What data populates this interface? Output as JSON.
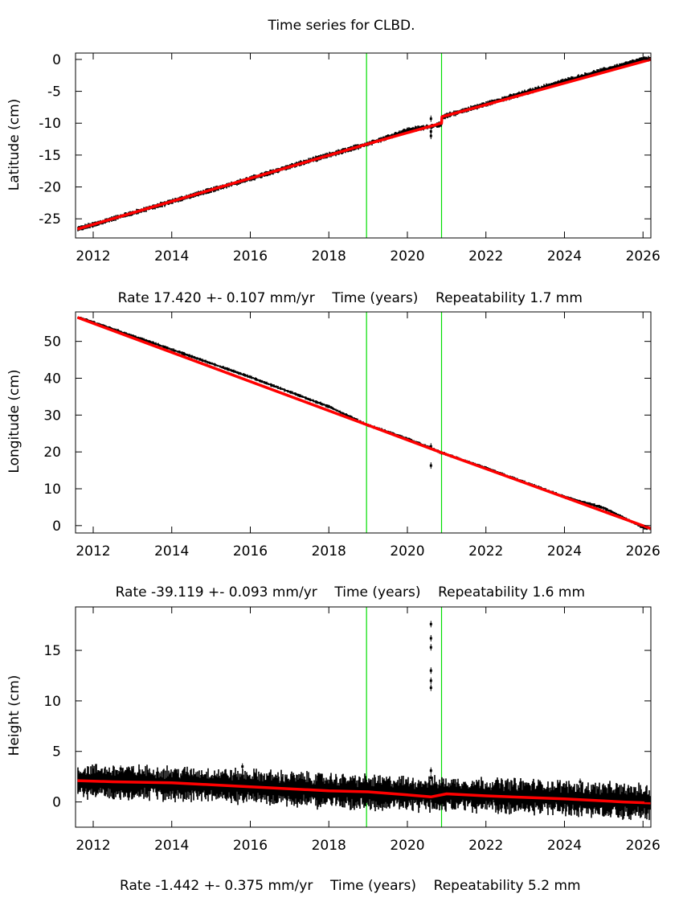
{
  "title": "Time series for CLBD.",
  "colors": {
    "data": "#000000",
    "model": "#ff0000",
    "events": "#00dd00",
    "frame": "#000000"
  },
  "chart_data": [
    {
      "type": "scatter",
      "title": "Time series for CLBD.",
      "ylabel": "Latitude (cm)",
      "xlabel": "Time (years)",
      "rate_text": "Rate 17.420 +- 0.107 mm/yr",
      "repeatability_text": "Repeatability 1.7 mm",
      "xlim": [
        2011.55,
        2026.2
      ],
      "ylim": [
        -28,
        1
      ],
      "xticks": [
        2012,
        2014,
        2016,
        2018,
        2020,
        2022,
        2024,
        2026
      ],
      "yticks": [
        0,
        -5,
        -10,
        -15,
        -20,
        -25
      ],
      "event_lines": [
        2018.96,
        2020.87
      ],
      "series": [
        {
          "name": "observations",
          "color": "#000000",
          "x": [
            2011.6,
            2012,
            2013,
            2014,
            2015,
            2016,
            2017,
            2018,
            2018.96,
            2019.5,
            2020,
            2020.6,
            2020.87,
            2020.9,
            2022,
            2023,
            2024,
            2025,
            2026,
            2026.2
          ],
          "y": [
            -26.6,
            -25.9,
            -24.1,
            -22.3,
            -20.5,
            -18.7,
            -16.8,
            -15.0,
            -13.3,
            -12.2,
            -11.1,
            -10.5,
            -10.2,
            -9.0,
            -7.0,
            -5.2,
            -3.4,
            -1.7,
            0.0,
            0.1
          ]
        },
        {
          "name": "model",
          "color": "#ff0000",
          "x": [
            2011.6,
            2018.96,
            2020.87,
            2020.88,
            2026.2
          ],
          "y": [
            -26.6,
            -13.3,
            -10.0,
            -9.0,
            0.0
          ]
        },
        {
          "name": "outliers",
          "color": "#000000",
          "x": [
            2020.6,
            2020.6,
            2020.6
          ],
          "y": [
            -9.3,
            -11.3,
            -12.0
          ]
        }
      ]
    },
    {
      "type": "scatter",
      "ylabel": "Longitude (cm)",
      "xlabel": "Time (years)",
      "rate_text": "Rate -39.119 +- 0.093 mm/yr",
      "repeatability_text": "Repeatability 1.6 mm",
      "xlim": [
        2011.55,
        2026.2
      ],
      "ylim": [
        -2,
        58
      ],
      "xticks": [
        2012,
        2014,
        2016,
        2018,
        2020,
        2022,
        2024,
        2026
      ],
      "yticks": [
        0,
        10,
        20,
        30,
        40,
        50
      ],
      "event_lines": [
        2018.96,
        2020.87
      ],
      "series": [
        {
          "name": "observations",
          "color": "#000000",
          "x": [
            2011.6,
            2012,
            2014,
            2016,
            2018,
            2018.96,
            2020,
            2020.87,
            2022,
            2024,
            2025,
            2026,
            2026.2
          ],
          "y": [
            56.5,
            55.2,
            47.8,
            40.3,
            32.3,
            27.4,
            23.6,
            19.8,
            15.6,
            7.8,
            4.8,
            -0.5,
            -0.8
          ]
        },
        {
          "name": "model",
          "color": "#ff0000",
          "x": [
            2011.6,
            2018.96,
            2020.87,
            2026.2
          ],
          "y": [
            56.5,
            27.4,
            19.8,
            -0.8
          ]
        },
        {
          "name": "outliers",
          "color": "#000000",
          "x": [
            2020.6,
            2020.6
          ],
          "y": [
            21.5,
            16.3
          ]
        }
      ]
    },
    {
      "type": "scatter",
      "ylabel": "Height (cm)",
      "xlabel": "Time (years)",
      "rate_text": "Rate -1.442 +- 0.375 mm/yr",
      "repeatability_text": "Repeatability 5.2 mm",
      "xlim": [
        2011.55,
        2026.2
      ],
      "ylim": [
        -2.5,
        19.3
      ],
      "xticks": [
        2012,
        2014,
        2016,
        2018,
        2020,
        2022,
        2024,
        2026
      ],
      "yticks": [
        0,
        5,
        10,
        15
      ],
      "event_lines": [
        2018.96,
        2020.87
      ],
      "series": [
        {
          "name": "observations_band",
          "color": "#000000",
          "x": [
            2011.6,
            2012,
            2014,
            2016,
            2018,
            2020,
            2022,
            2024,
            2026,
            2026.2
          ],
          "y_center": [
            2.0,
            2.0,
            1.8,
            1.5,
            1.1,
            0.8,
            0.7,
            0.4,
            0.0,
            -0.1
          ],
          "y_spread": 1.3
        },
        {
          "name": "model",
          "color": "#ff0000",
          "x": [
            2011.6,
            2012.5,
            2014,
            2016,
            2018,
            2019,
            2020,
            2020.6,
            2021,
            2022,
            2024,
            2025.5,
            2026.2
          ],
          "y": [
            2.1,
            2.0,
            1.9,
            1.5,
            1.1,
            1.0,
            0.7,
            0.5,
            0.8,
            0.6,
            0.3,
            0.0,
            -0.1
          ]
        },
        {
          "name": "outliers",
          "color": "#000000",
          "x": [
            2020.6,
            2020.6,
            2020.6,
            2020.6,
            2020.6,
            2020.6,
            2020.6,
            2020.6,
            2012.7,
            2015.8,
            2024.4
          ],
          "y": [
            17.6,
            16.2,
            15.3,
            13.0,
            12.0,
            11.3,
            3.1,
            2.4,
            3.3,
            3.5,
            2.0
          ]
        }
      ]
    }
  ]
}
